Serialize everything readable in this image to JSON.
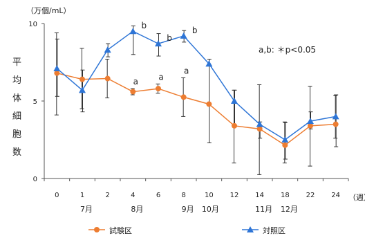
{
  "chart_data": {
    "type": "line",
    "unit_label": "（万個/mL）",
    "ylabel": "平均体細胞数",
    "x_unit": "（週）",
    "ylim": [
      0,
      10
    ],
    "yticks": [
      0,
      5,
      10
    ],
    "x": [
      "0",
      "1",
      "2",
      "4",
      "6",
      "8",
      "10",
      "12",
      "14",
      "18",
      "22",
      "24"
    ],
    "months": [
      "7月",
      "8月",
      "9月",
      "10月",
      "11月",
      "12月"
    ],
    "series": [
      {
        "name": "試験区",
        "color": "#ed7d31",
        "marker": "circle",
        "values": [
          6.8,
          6.4,
          6.45,
          5.6,
          5.8,
          5.25,
          4.8,
          3.4,
          3.2,
          2.15,
          3.4,
          3.5
        ],
        "err_low": [
          4.1,
          4.5,
          5.2,
          5.4,
          5.5,
          4.0,
          null,
          1.0,
          0.25,
          1.0,
          0.8,
          2.6
        ],
        "err_high": [
          9.4,
          8.4,
          7.7,
          5.8,
          6.1,
          6.5,
          null,
          5.7,
          6.05,
          3.65,
          5.95,
          5.35
        ],
        "annotations": [
          "",
          "",
          "",
          "a",
          "a",
          "a",
          "",
          "",
          "",
          "",
          "",
          ""
        ]
      },
      {
        "name": "対照区",
        "color": "#2e75d6",
        "marker": "triangle",
        "values": [
          7.1,
          5.7,
          8.3,
          9.5,
          8.7,
          9.2,
          7.4,
          5.0,
          3.5,
          2.5,
          3.7,
          4.0
        ],
        "err_low": [
          5.3,
          4.3,
          7.85,
          8.0,
          7.9,
          8.8,
          2.3,
          3.4,
          2.6,
          1.25,
          3.2,
          2.05
        ],
        "err_high": [
          9.0,
          7.0,
          8.7,
          9.85,
          9.35,
          9.55,
          7.7,
          5.7,
          3.65,
          3.6,
          4.3,
          5.4
        ],
        "annotations": [
          "",
          "",
          "",
          "b",
          "b",
          "b",
          "",
          "",
          "",
          "",
          "",
          ""
        ]
      }
    ],
    "significance_note": "a,b: ＊p<0.05",
    "grid": false,
    "legend_position": "bottom"
  }
}
